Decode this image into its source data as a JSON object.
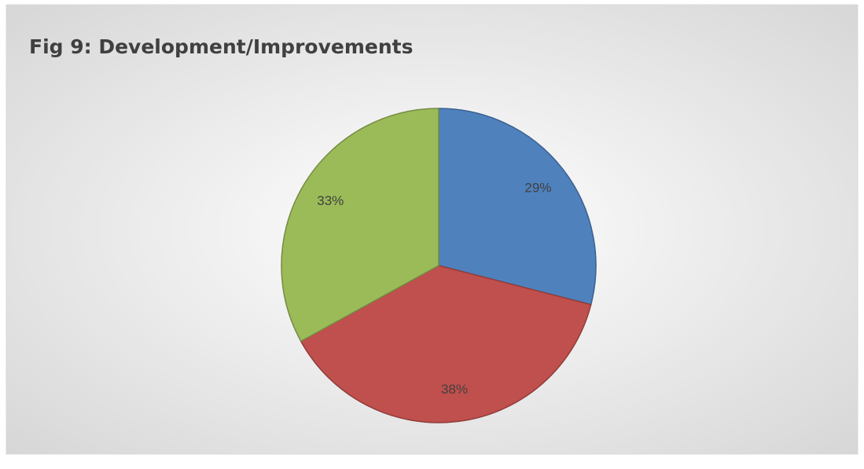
{
  "chart_data": {
    "type": "pie",
    "title": "Fig 9: Development/Improvements",
    "values": [
      29,
      38,
      33
    ],
    "value_labels": [
      "29%",
      "38%",
      "33%"
    ],
    "colors": [
      "#4f81bd",
      "#c0504d",
      "#9bbb59"
    ]
  }
}
